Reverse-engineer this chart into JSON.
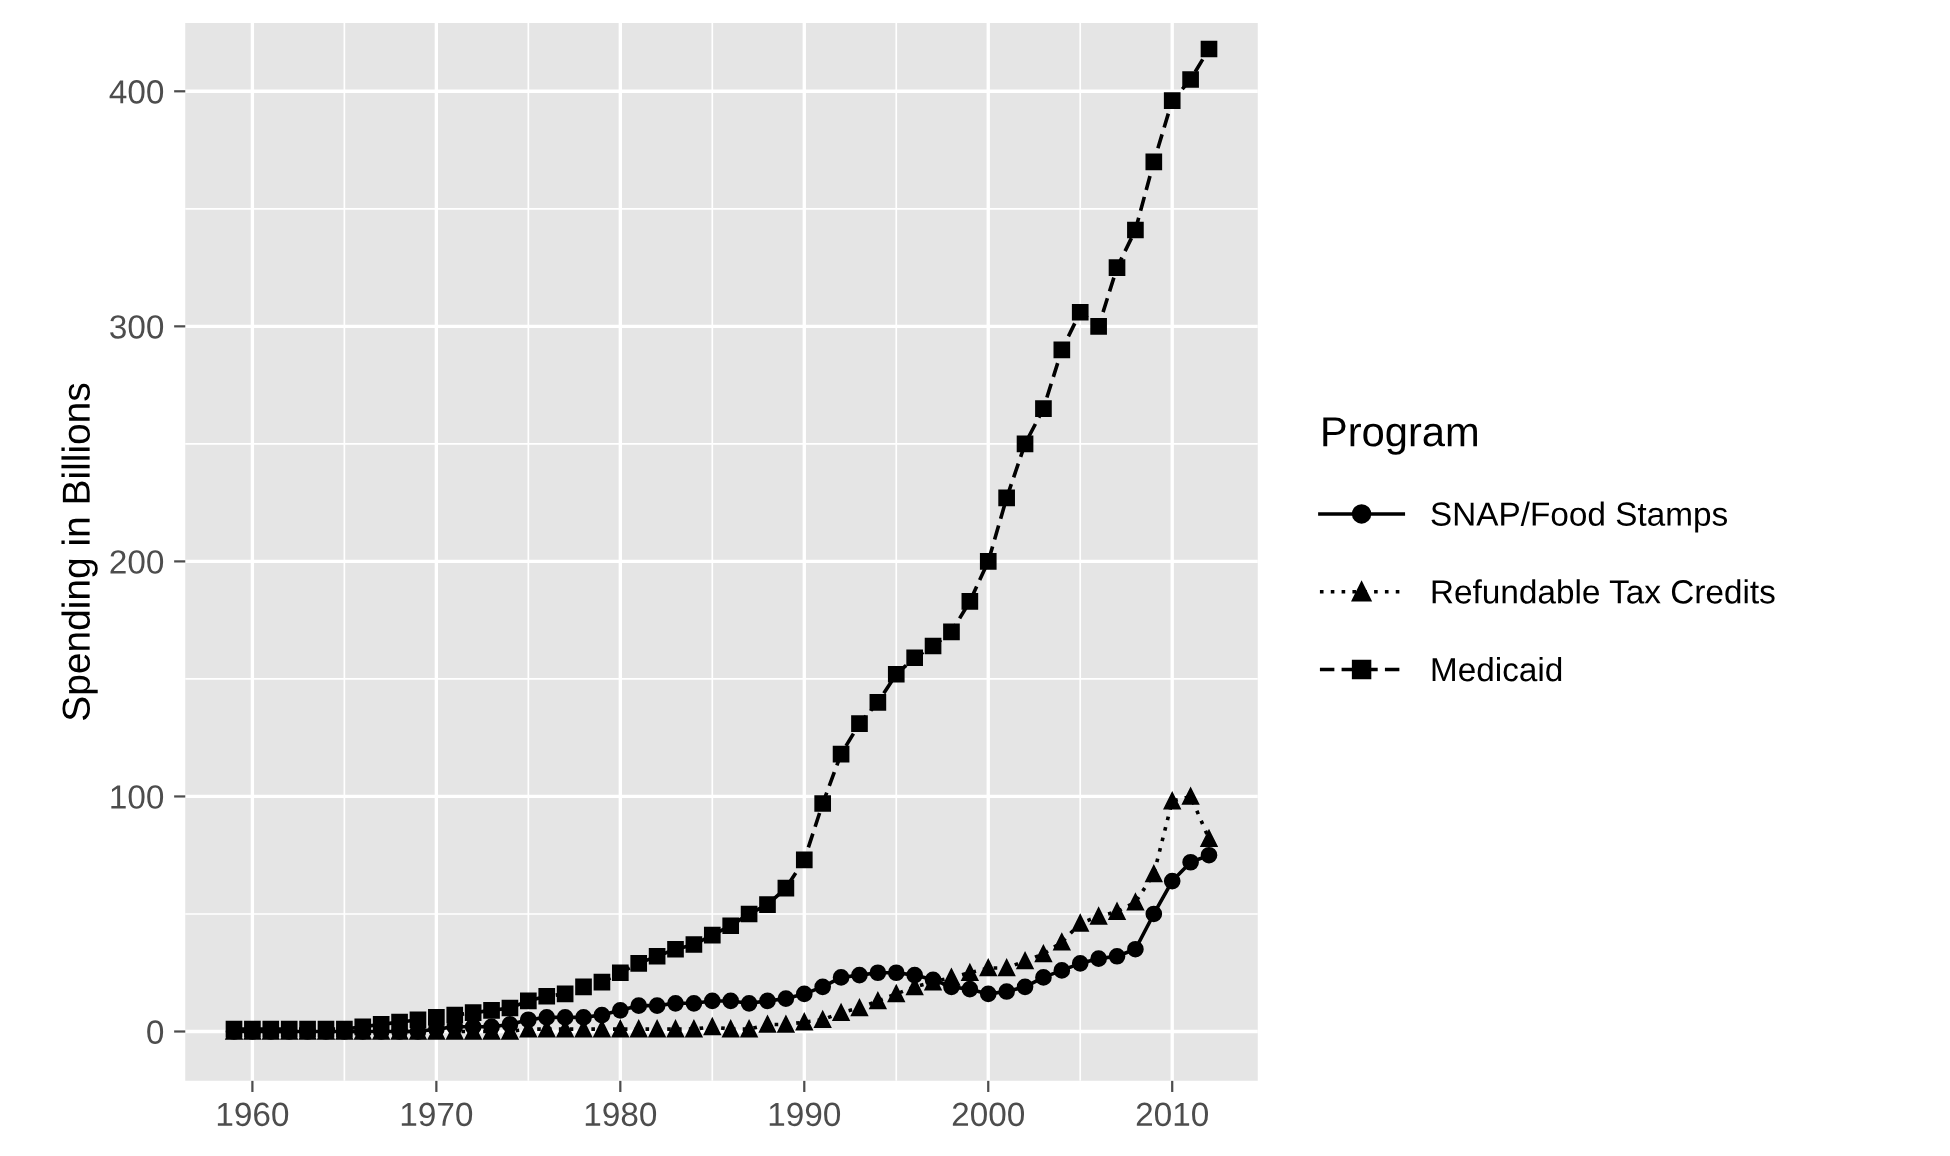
{
  "chart_data": {
    "type": "line",
    "ylabel": "Spending in Billions",
    "legend_title": "Program",
    "legend": "right",
    "grid": true,
    "x": [
      1959,
      1960,
      1961,
      1962,
      1963,
      1964,
      1965,
      1966,
      1967,
      1968,
      1969,
      1970,
      1971,
      1972,
      1973,
      1974,
      1975,
      1976,
      1977,
      1978,
      1979,
      1980,
      1981,
      1982,
      1983,
      1984,
      1985,
      1986,
      1987,
      1988,
      1989,
      1990,
      1991,
      1992,
      1993,
      1994,
      1995,
      1996,
      1997,
      1998,
      1999,
      2000,
      2001,
      2002,
      2003,
      2004,
      2005,
      2006,
      2007,
      2008,
      2009,
      2010,
      2011,
      2012
    ],
    "series": [
      {
        "name": "SNAP/Food Stamps",
        "color": "#000000",
        "marker": "circle",
        "line_style": "solid",
        "values": [
          0,
          0,
          0,
          0,
          0,
          0,
          0,
          0,
          0,
          0,
          0,
          1,
          2,
          2,
          2,
          3,
          5,
          6,
          6,
          6,
          7,
          9,
          11,
          11,
          12,
          12,
          13,
          13,
          12,
          13,
          14,
          16,
          19,
          23,
          24,
          25,
          25,
          24,
          22,
          19,
          18,
          16,
          17,
          19,
          23,
          26,
          29,
          31,
          32,
          35,
          50,
          64,
          72,
          75
        ]
      },
      {
        "name": "Refundable Tax Credits",
        "color": "#000000",
        "marker": "triangle",
        "line_style": "dotted",
        "values": [
          0,
          0,
          0,
          0,
          0,
          0,
          0,
          0,
          0,
          0,
          0,
          0,
          0,
          0,
          0,
          0,
          1,
          1,
          1,
          1,
          1,
          1,
          1,
          1,
          1,
          1,
          2,
          1,
          1,
          3,
          3,
          4,
          5,
          8,
          10,
          13,
          16,
          19,
          21,
          23,
          25,
          27,
          27,
          30,
          33,
          38,
          46,
          49,
          51,
          55,
          67,
          98,
          100,
          82
        ]
      },
      {
        "name": "Medicaid",
        "color": "#000000",
        "marker": "square",
        "line_style": "dashed",
        "values": [
          1,
          1,
          1,
          1,
          1,
          1,
          1,
          2,
          3,
          4,
          5,
          6,
          7,
          8,
          9,
          10,
          13,
          15,
          16,
          19,
          21,
          25,
          29,
          32,
          35,
          37,
          41,
          45,
          50,
          54,
          61,
          73,
          97,
          118,
          131,
          140,
          152,
          159,
          164,
          170,
          183,
          200,
          227,
          250,
          265,
          290,
          306,
          300,
          325,
          341,
          370,
          396,
          405,
          418
        ]
      }
    ],
    "xlim": [
      1956.35,
      2014.65
    ],
    "ylim": [
      -21,
      429
    ],
    "xticks": [
      1960,
      1970,
      1980,
      1990,
      2000,
      2010
    ],
    "yticks": [
      0,
      100,
      200,
      300,
      400
    ]
  }
}
